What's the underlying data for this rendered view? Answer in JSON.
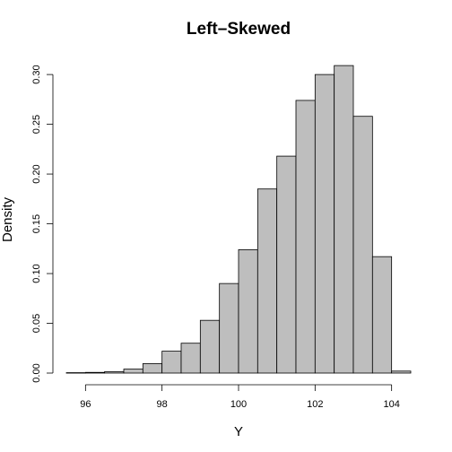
{
  "chart_data": {
    "type": "bar",
    "title": "Left–Skewed",
    "xlabel": "Y",
    "ylabel": "Density",
    "xlim": [
      95.5,
      104.5
    ],
    "ylim": [
      0,
      0.31
    ],
    "xticks": [
      96,
      98,
      100,
      102,
      104
    ],
    "xtick_labels": [
      "96",
      "98",
      "100",
      "102",
      "104"
    ],
    "yticks": [
      0.0,
      0.05,
      0.1,
      0.15,
      0.2,
      0.25,
      0.3
    ],
    "ytick_labels": [
      "0.00",
      "0.05",
      "0.10",
      "0.15",
      "0.20",
      "0.25",
      "0.30"
    ],
    "bin_width": 0.5,
    "bins": [
      {
        "x0": 95.5,
        "x1": 96.0,
        "density": 0.0004
      },
      {
        "x0": 96.0,
        "x1": 96.5,
        "density": 0.0007
      },
      {
        "x0": 96.5,
        "x1": 97.0,
        "density": 0.0015
      },
      {
        "x0": 97.0,
        "x1": 97.5,
        "density": 0.004
      },
      {
        "x0": 97.5,
        "x1": 98.0,
        "density": 0.0095
      },
      {
        "x0": 98.0,
        "x1": 98.5,
        "density": 0.022
      },
      {
        "x0": 98.5,
        "x1": 99.0,
        "density": 0.03
      },
      {
        "x0": 99.0,
        "x1": 99.5,
        "density": 0.053
      },
      {
        "x0": 99.5,
        "x1": 100.0,
        "density": 0.09
      },
      {
        "x0": 100.0,
        "x1": 100.5,
        "density": 0.124
      },
      {
        "x0": 100.5,
        "x1": 101.0,
        "density": 0.185
      },
      {
        "x0": 101.0,
        "x1": 101.5,
        "density": 0.218
      },
      {
        "x0": 101.5,
        "x1": 102.0,
        "density": 0.274
      },
      {
        "x0": 102.0,
        "x1": 102.5,
        "density": 0.3
      },
      {
        "x0": 102.5,
        "x1": 103.0,
        "density": 0.309
      },
      {
        "x0": 103.0,
        "x1": 103.5,
        "density": 0.258
      },
      {
        "x0": 103.5,
        "x1": 104.0,
        "density": 0.117
      },
      {
        "x0": 104.0,
        "x1": 104.5,
        "density": 0.002
      }
    ],
    "bar_fill": "#bebebe",
    "bar_stroke": "#000000"
  }
}
